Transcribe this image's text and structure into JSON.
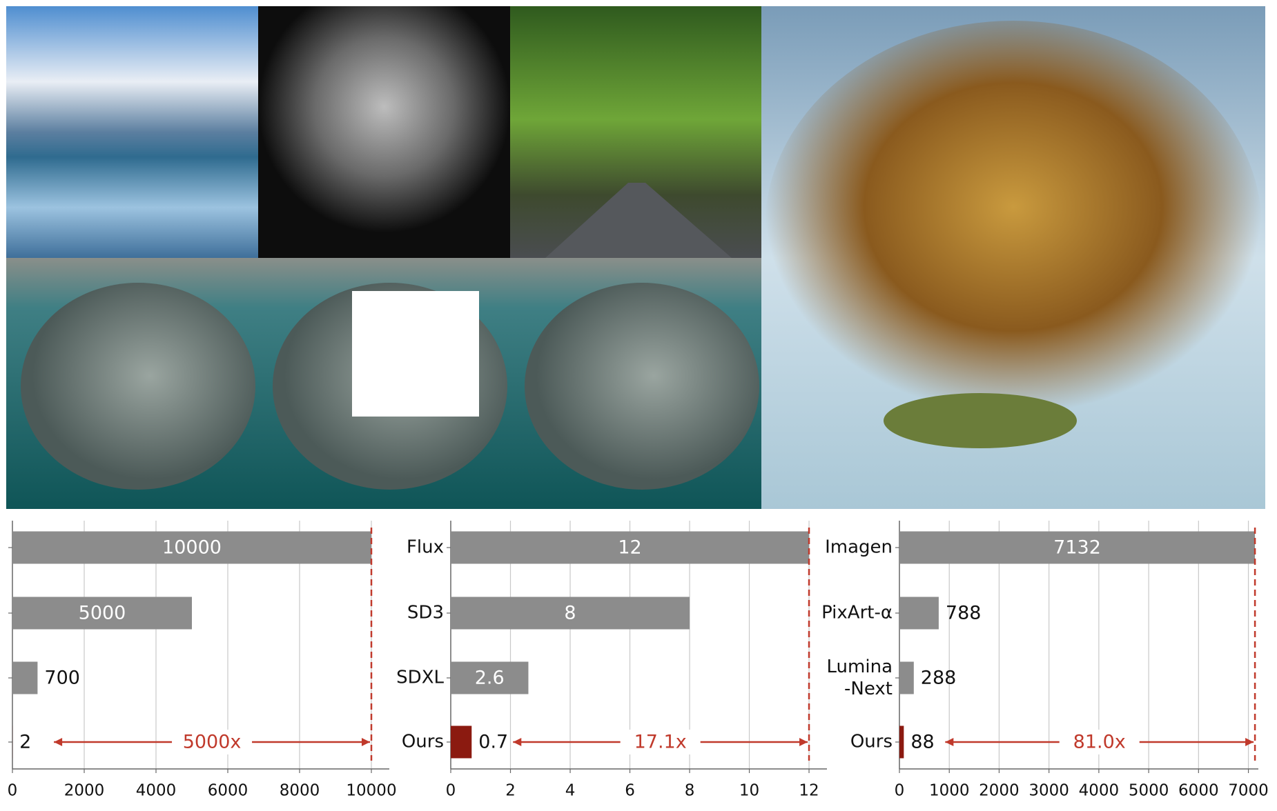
{
  "chart_data": [
    {
      "type": "bar",
      "orientation": "horizontal",
      "categories": [
        null,
        null,
        null,
        null
      ],
      "values": [
        10000,
        5000,
        700,
        2
      ],
      "colors": [
        "#8c8c8c",
        "#8c8c8c",
        "#8c8c8c",
        "#8b1a10"
      ],
      "xlim": [
        0,
        10500
      ],
      "xticks": [
        0,
        2000,
        4000,
        6000,
        8000,
        10000
      ],
      "grid": true,
      "annotation": "5000x",
      "reference_color": "#c0392b"
    },
    {
      "type": "bar",
      "orientation": "horizontal",
      "categories": [
        "Flux",
        "SD3",
        "SDXL",
        "Ours"
      ],
      "values": [
        12,
        8,
        2.6,
        0.7
      ],
      "colors": [
        "#8c8c8c",
        "#8c8c8c",
        "#8c8c8c",
        "#8b1a10"
      ],
      "xlim": [
        0,
        12.6
      ],
      "xticks": [
        0,
        2,
        4,
        6,
        8,
        10,
        12
      ],
      "grid": true,
      "annotation": "17.1x",
      "reference_color": "#c0392b"
    },
    {
      "type": "bar",
      "orientation": "horizontal",
      "categories": [
        "Imagen",
        "PixArt-α",
        "Lumina\n-Next",
        "Ours"
      ],
      "values": [
        7132,
        788,
        288,
        88
      ],
      "colors": [
        "#8c8c8c",
        "#8c8c8c",
        "#8c8c8c",
        "#8b1a10"
      ],
      "xlim": [
        0,
        7200
      ],
      "xticks": [
        0,
        1000,
        2000,
        3000,
        4000,
        5000,
        6000,
        7000
      ],
      "grid": true,
      "annotation": "81.0x",
      "reference_color": "#c0392b"
    }
  ]
}
